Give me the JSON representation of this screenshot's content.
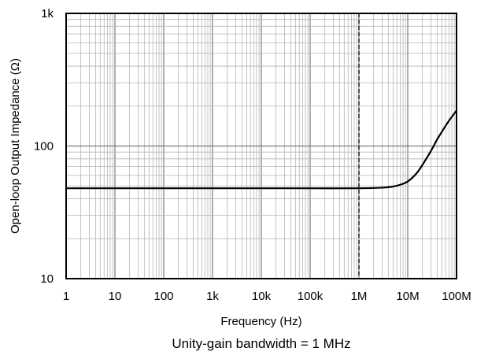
{
  "chart_data": {
    "type": "line",
    "x_scale": "log",
    "y_scale": "log",
    "xlabel": "Frequency (Hz)",
    "ylabel": "Open-loop Output Impedance (Ω)",
    "caption": "Unity-gain bandwidth = 1 MHz",
    "xlim": [
      1,
      100000000
    ],
    "ylim": [
      10,
      1000
    ],
    "x_ticks": [
      {
        "value": 1,
        "label": "1"
      },
      {
        "value": 10,
        "label": "10"
      },
      {
        "value": 100,
        "label": "100"
      },
      {
        "value": 1000,
        "label": "1k"
      },
      {
        "value": 10000,
        "label": "10k"
      },
      {
        "value": 100000,
        "label": "100k"
      },
      {
        "value": 1000000,
        "label": "1M"
      },
      {
        "value": 10000000,
        "label": "10M"
      },
      {
        "value": 100000000,
        "label": "100M"
      }
    ],
    "y_ticks": [
      {
        "value": 10,
        "label": "10"
      },
      {
        "value": 100,
        "label": "100"
      },
      {
        "value": 1000,
        "label": "1k"
      }
    ],
    "grid": true,
    "vertical_marker": {
      "x": 1000000,
      "style": "dashed"
    },
    "series": [
      {
        "x": [
          1,
          10,
          100,
          1000,
          10000,
          100000,
          1000000,
          3000000,
          5000000,
          7000000,
          10000000,
          15000000,
          20000000,
          30000000,
          40000000,
          50000000,
          70000000,
          100000000
        ],
        "y": [
          48,
          48,
          48,
          48,
          48,
          48,
          48,
          48.5,
          49.5,
          51,
          54,
          62,
          72,
          92,
          112,
          128,
          155,
          185
        ]
      }
    ]
  },
  "colors": {
    "line": "#000000",
    "grid": "#b5b5b5",
    "frame": "#000000"
  }
}
